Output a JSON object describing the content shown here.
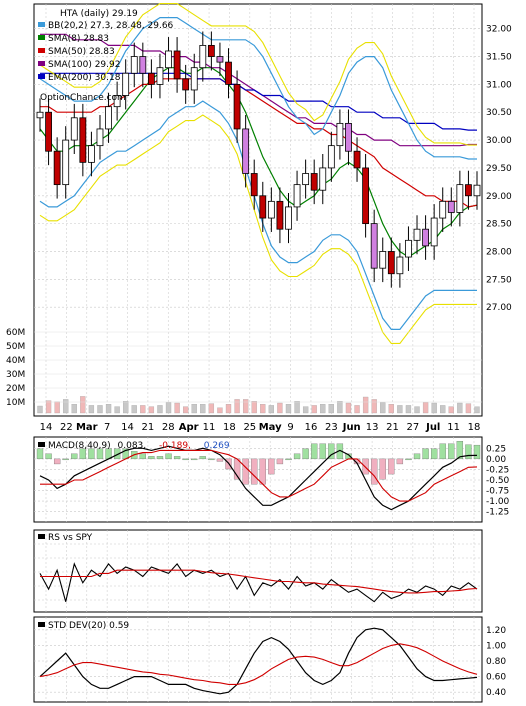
{
  "chart_data": {
    "type": "line",
    "price_panel": {
      "title": "HTA (daily) 29.19",
      "watermark": "OptionChance.com",
      "ylim": [
        26.5,
        32.3
      ],
      "yticks": [
        27.0,
        27.5,
        28.0,
        28.5,
        29.0,
        29.5,
        30.0,
        30.5,
        31.0,
        31.5,
        32.0
      ],
      "volume_ticks": [
        "10M",
        "20M",
        "30M",
        "40M",
        "50M",
        "60M"
      ],
      "legend": [
        {
          "label": "BB(20,2) 27.3, 28.48, 29.66",
          "color": "#3a9ad9"
        },
        {
          "label": "SMA(8) 28.83",
          "color": "#008000"
        },
        {
          "label": "SMA(50) 28.83",
          "color": "#d00000"
        },
        {
          "label": "SMA(100) 29.92",
          "color": "#800080"
        },
        {
          "label": "EMA(200) 30.18",
          "color": "#0000c0"
        }
      ],
      "series": [
        {
          "name": "Close",
          "values": [
            30.5,
            29.8,
            29.2,
            30.0,
            30.4,
            29.6,
            29.9,
            30.2,
            30.6,
            30.8,
            31.2,
            31.5,
            31.2,
            31.0,
            31.3,
            31.6,
            31.1,
            30.9,
            31.3,
            31.7,
            31.5,
            31.4,
            31.0,
            30.2,
            29.4,
            29.0,
            28.6,
            28.9,
            28.4,
            28.8,
            29.2,
            29.4,
            29.1,
            29.5,
            29.9,
            30.3,
            29.8,
            29.5,
            28.5,
            27.7,
            28.0,
            27.6,
            27.9,
            28.2,
            28.4,
            28.1,
            28.6,
            28.9,
            28.7,
            29.2,
            29.0,
            29.19
          ]
        },
        {
          "name": "SMA(8)",
          "values": [
            30.2,
            30.0,
            29.8,
            29.8,
            29.9,
            29.9,
            29.9,
            30.0,
            30.1,
            30.3,
            30.5,
            30.7,
            30.9,
            31.1,
            31.2,
            31.3,
            31.3,
            31.2,
            31.2,
            31.3,
            31.3,
            31.2,
            31.0,
            30.8,
            30.5,
            30.1,
            29.7,
            29.4,
            29.1,
            28.9,
            28.8,
            28.9,
            29.0,
            29.2,
            29.3,
            29.5,
            29.6,
            29.5,
            29.3,
            28.9,
            28.5,
            28.2,
            28.0,
            27.9,
            28.0,
            28.1,
            28.2,
            28.4,
            28.5,
            28.7,
            28.8,
            28.83
          ]
        },
        {
          "name": "SMA(50)",
          "values": [
            30.6,
            30.6,
            30.5,
            30.5,
            30.5,
            30.5,
            30.5,
            30.6,
            30.6,
            30.7,
            30.8,
            30.9,
            31.0,
            31.0,
            31.1,
            31.1,
            31.1,
            31.1,
            31.1,
            31.1,
            31.1,
            31.1,
            31.0,
            31.0,
            30.9,
            30.8,
            30.7,
            30.6,
            30.5,
            30.4,
            30.3,
            30.3,
            30.2,
            30.2,
            30.1,
            30.1,
            30.0,
            29.9,
            29.8,
            29.7,
            29.5,
            29.4,
            29.3,
            29.2,
            29.1,
            29.0,
            29.0,
            28.9,
            28.9,
            28.9,
            28.8,
            28.83
          ]
        },
        {
          "name": "SMA(100)",
          "values": [
            31.9,
            31.9,
            31.9,
            31.9,
            31.8,
            31.8,
            31.8,
            31.8,
            31.7,
            31.7,
            31.7,
            31.7,
            31.6,
            31.6,
            31.6,
            31.5,
            31.5,
            31.5,
            31.4,
            31.4,
            31.3,
            31.3,
            31.2,
            31.1,
            31.0,
            30.9,
            30.8,
            30.7,
            30.6,
            30.5,
            30.4,
            30.4,
            30.3,
            30.3,
            30.3,
            30.2,
            30.2,
            30.1,
            30.1,
            30.0,
            30.0,
            30.0,
            29.9,
            29.9,
            29.9,
            29.9,
            29.9,
            29.9,
            29.9,
            29.9,
            29.92,
            29.92
          ]
        },
        {
          "name": "EMA(200)",
          "values": [
            31.2,
            31.2,
            31.2,
            31.2,
            31.2,
            31.2,
            31.2,
            31.2,
            31.2,
            31.2,
            31.2,
            31.2,
            31.2,
            31.2,
            31.2,
            31.2,
            31.2,
            31.2,
            31.1,
            31.1,
            31.1,
            31.1,
            31.0,
            31.0,
            30.9,
            30.9,
            30.8,
            30.8,
            30.8,
            30.7,
            30.7,
            30.7,
            30.7,
            30.7,
            30.6,
            30.6,
            30.6,
            30.5,
            30.5,
            30.5,
            30.4,
            30.4,
            30.4,
            30.3,
            30.3,
            30.3,
            30.3,
            30.2,
            30.2,
            30.2,
            30.18,
            30.18
          ]
        },
        {
          "name": "BB upper",
          "values": [
            31.1,
            31.0,
            30.9,
            30.8,
            30.7,
            30.7,
            30.7,
            30.8,
            31.0,
            31.3,
            31.6,
            31.8,
            32.0,
            32.1,
            32.2,
            32.2,
            32.2,
            32.1,
            32.0,
            31.9,
            31.8,
            31.8,
            31.8,
            31.8,
            31.8,
            31.7,
            31.5,
            31.2,
            30.9,
            30.6,
            30.4,
            30.3,
            30.1,
            30.2,
            30.5,
            30.8,
            31.2,
            31.4,
            31.5,
            31.5,
            31.3,
            30.9,
            30.6,
            30.3,
            30.0,
            29.8,
            29.7,
            29.7,
            29.7,
            29.7,
            29.66,
            29.66
          ]
        },
        {
          "name": "BB lower",
          "values": [
            28.9,
            28.8,
            28.8,
            28.9,
            29.0,
            29.2,
            29.4,
            29.6,
            29.7,
            29.8,
            29.8,
            29.9,
            30.0,
            30.1,
            30.2,
            30.4,
            30.5,
            30.6,
            30.6,
            30.7,
            30.6,
            30.5,
            30.3,
            30.0,
            29.5,
            29.0,
            28.5,
            28.1,
            27.9,
            27.8,
            27.8,
            27.9,
            28.0,
            28.2,
            28.3,
            28.3,
            28.2,
            28.0,
            27.6,
            27.2,
            26.8,
            26.6,
            26.6,
            26.8,
            27.0,
            27.2,
            27.3,
            27.3,
            27.3,
            27.3,
            27.3,
            27.3
          ]
        }
      ]
    },
    "x_tick_labels": [
      {
        "label": "14",
        "bold": false
      },
      {
        "label": "22",
        "bold": false
      },
      {
        "label": "Mar",
        "bold": true
      },
      {
        "label": "7",
        "bold": false
      },
      {
        "label": "14",
        "bold": false
      },
      {
        "label": "21",
        "bold": false
      },
      {
        "label": "28",
        "bold": false
      },
      {
        "label": "Apr",
        "bold": true
      },
      {
        "label": "11",
        "bold": false
      },
      {
        "label": "18",
        "bold": false
      },
      {
        "label": "25",
        "bold": false
      },
      {
        "label": "May",
        "bold": true
      },
      {
        "label": "9",
        "bold": false
      },
      {
        "label": "16",
        "bold": false
      },
      {
        "label": "23",
        "bold": false
      },
      {
        "label": "Jun",
        "bold": true
      },
      {
        "label": "13",
        "bold": false
      },
      {
        "label": "21",
        "bold": false
      },
      {
        "label": "27",
        "bold": false
      },
      {
        "label": "Jul",
        "bold": true
      },
      {
        "label": "11",
        "bold": false
      },
      {
        "label": "18",
        "bold": false
      }
    ],
    "macd_panel": {
      "label": "MACD(8,40,9)",
      "v1": "0.083,",
      "v2": "-0.189,",
      "v3": "0.269",
      "ylim": [
        -1.4,
        0.4
      ],
      "yticks": [
        "0.25",
        "0.00",
        "-0.25",
        "-0.50",
        "-0.75",
        "-1.00",
        "-1.25"
      ],
      "macd": [
        -0.4,
        -0.5,
        -0.7,
        -0.6,
        -0.4,
        -0.3,
        -0.2,
        -0.1,
        0.0,
        0.1,
        0.2,
        0.25,
        0.25,
        0.2,
        0.25,
        0.3,
        0.25,
        0.2,
        0.2,
        0.25,
        0.2,
        0.1,
        -0.1,
        -0.4,
        -0.7,
        -0.9,
        -1.1,
        -1.1,
        -1.0,
        -0.9,
        -0.7,
        -0.5,
        -0.3,
        -0.1,
        0.1,
        0.2,
        0.1,
        -0.1,
        -0.5,
        -0.9,
        -1.1,
        -1.2,
        -1.1,
        -1.0,
        -0.8,
        -0.6,
        -0.4,
        -0.2,
        -0.1,
        0.05,
        0.08,
        0.083
      ],
      "signal": [
        -0.6,
        -0.6,
        -0.6,
        -0.6,
        -0.5,
        -0.5,
        -0.4,
        -0.3,
        -0.2,
        -0.1,
        0.0,
        0.1,
        0.15,
        0.15,
        0.2,
        0.2,
        0.2,
        0.2,
        0.2,
        0.2,
        0.2,
        0.15,
        0.1,
        0.0,
        -0.2,
        -0.4,
        -0.6,
        -0.8,
        -0.9,
        -0.9,
        -0.8,
        -0.7,
        -0.6,
        -0.4,
        -0.2,
        -0.1,
        0.0,
        0.0,
        -0.2,
        -0.4,
        -0.7,
        -0.9,
        -1.0,
        -1.0,
        -0.9,
        -0.8,
        -0.6,
        -0.5,
        -0.4,
        -0.3,
        -0.2,
        -0.189
      ]
    },
    "rs_panel": {
      "label": "RS vs SPY",
      "close": [
        0.55,
        0.3,
        0.6,
        0.1,
        0.7,
        0.4,
        0.6,
        0.5,
        0.7,
        0.55,
        0.65,
        0.6,
        0.5,
        0.65,
        0.6,
        0.55,
        0.7,
        0.5,
        0.6,
        0.55,
        0.6,
        0.5,
        0.55,
        0.3,
        0.5,
        0.2,
        0.4,
        0.35,
        0.45,
        0.3,
        0.5,
        0.35,
        0.4,
        0.3,
        0.45,
        0.35,
        0.25,
        0.3,
        0.2,
        0.1,
        0.25,
        0.15,
        0.2,
        0.3,
        0.25,
        0.35,
        0.3,
        0.2,
        0.35,
        0.3,
        0.4,
        0.3
      ],
      "sma": [
        0.5,
        0.5,
        0.5,
        0.5,
        0.5,
        0.5,
        0.5,
        0.55,
        0.55,
        0.6,
        0.6,
        0.6,
        0.6,
        0.6,
        0.6,
        0.6,
        0.6,
        0.6,
        0.6,
        0.58,
        0.56,
        0.55,
        0.54,
        0.52,
        0.5,
        0.48,
        0.46,
        0.44,
        0.42,
        0.42,
        0.41,
        0.4,
        0.4,
        0.38,
        0.37,
        0.36,
        0.35,
        0.34,
        0.32,
        0.3,
        0.28,
        0.26,
        0.25,
        0.24,
        0.24,
        0.25,
        0.26,
        0.26,
        0.27,
        0.28,
        0.3,
        0.31
      ]
    },
    "std_panel": {
      "label": "STD DEV(20) 0.59",
      "ylim": [
        0.3,
        1.3
      ],
      "yticks": [
        "1.20",
        "1.00",
        "0.80",
        "0.60",
        "0.40"
      ],
      "stddev": [
        0.6,
        0.7,
        0.8,
        0.9,
        0.75,
        0.6,
        0.5,
        0.45,
        0.45,
        0.5,
        0.55,
        0.6,
        0.6,
        0.6,
        0.55,
        0.5,
        0.5,
        0.5,
        0.45,
        0.42,
        0.4,
        0.38,
        0.4,
        0.5,
        0.7,
        0.9,
        1.05,
        1.1,
        1.05,
        0.95,
        0.8,
        0.65,
        0.55,
        0.5,
        0.55,
        0.65,
        0.9,
        1.1,
        1.2,
        1.22,
        1.2,
        1.1,
        1.0,
        0.85,
        0.7,
        0.6,
        0.55,
        0.55,
        0.56,
        0.57,
        0.58,
        0.59
      ],
      "sma": [
        0.6,
        0.62,
        0.65,
        0.7,
        0.75,
        0.78,
        0.78,
        0.76,
        0.74,
        0.72,
        0.7,
        0.68,
        0.66,
        0.65,
        0.63,
        0.62,
        0.6,
        0.58,
        0.56,
        0.55,
        0.53,
        0.52,
        0.5,
        0.5,
        0.52,
        0.56,
        0.62,
        0.7,
        0.76,
        0.82,
        0.85,
        0.86,
        0.85,
        0.82,
        0.78,
        0.74,
        0.74,
        0.78,
        0.84,
        0.9,
        0.96,
        1.0,
        1.02,
        1.0,
        0.97,
        0.92,
        0.86,
        0.8,
        0.75,
        0.7,
        0.66,
        0.63
      ]
    }
  }
}
